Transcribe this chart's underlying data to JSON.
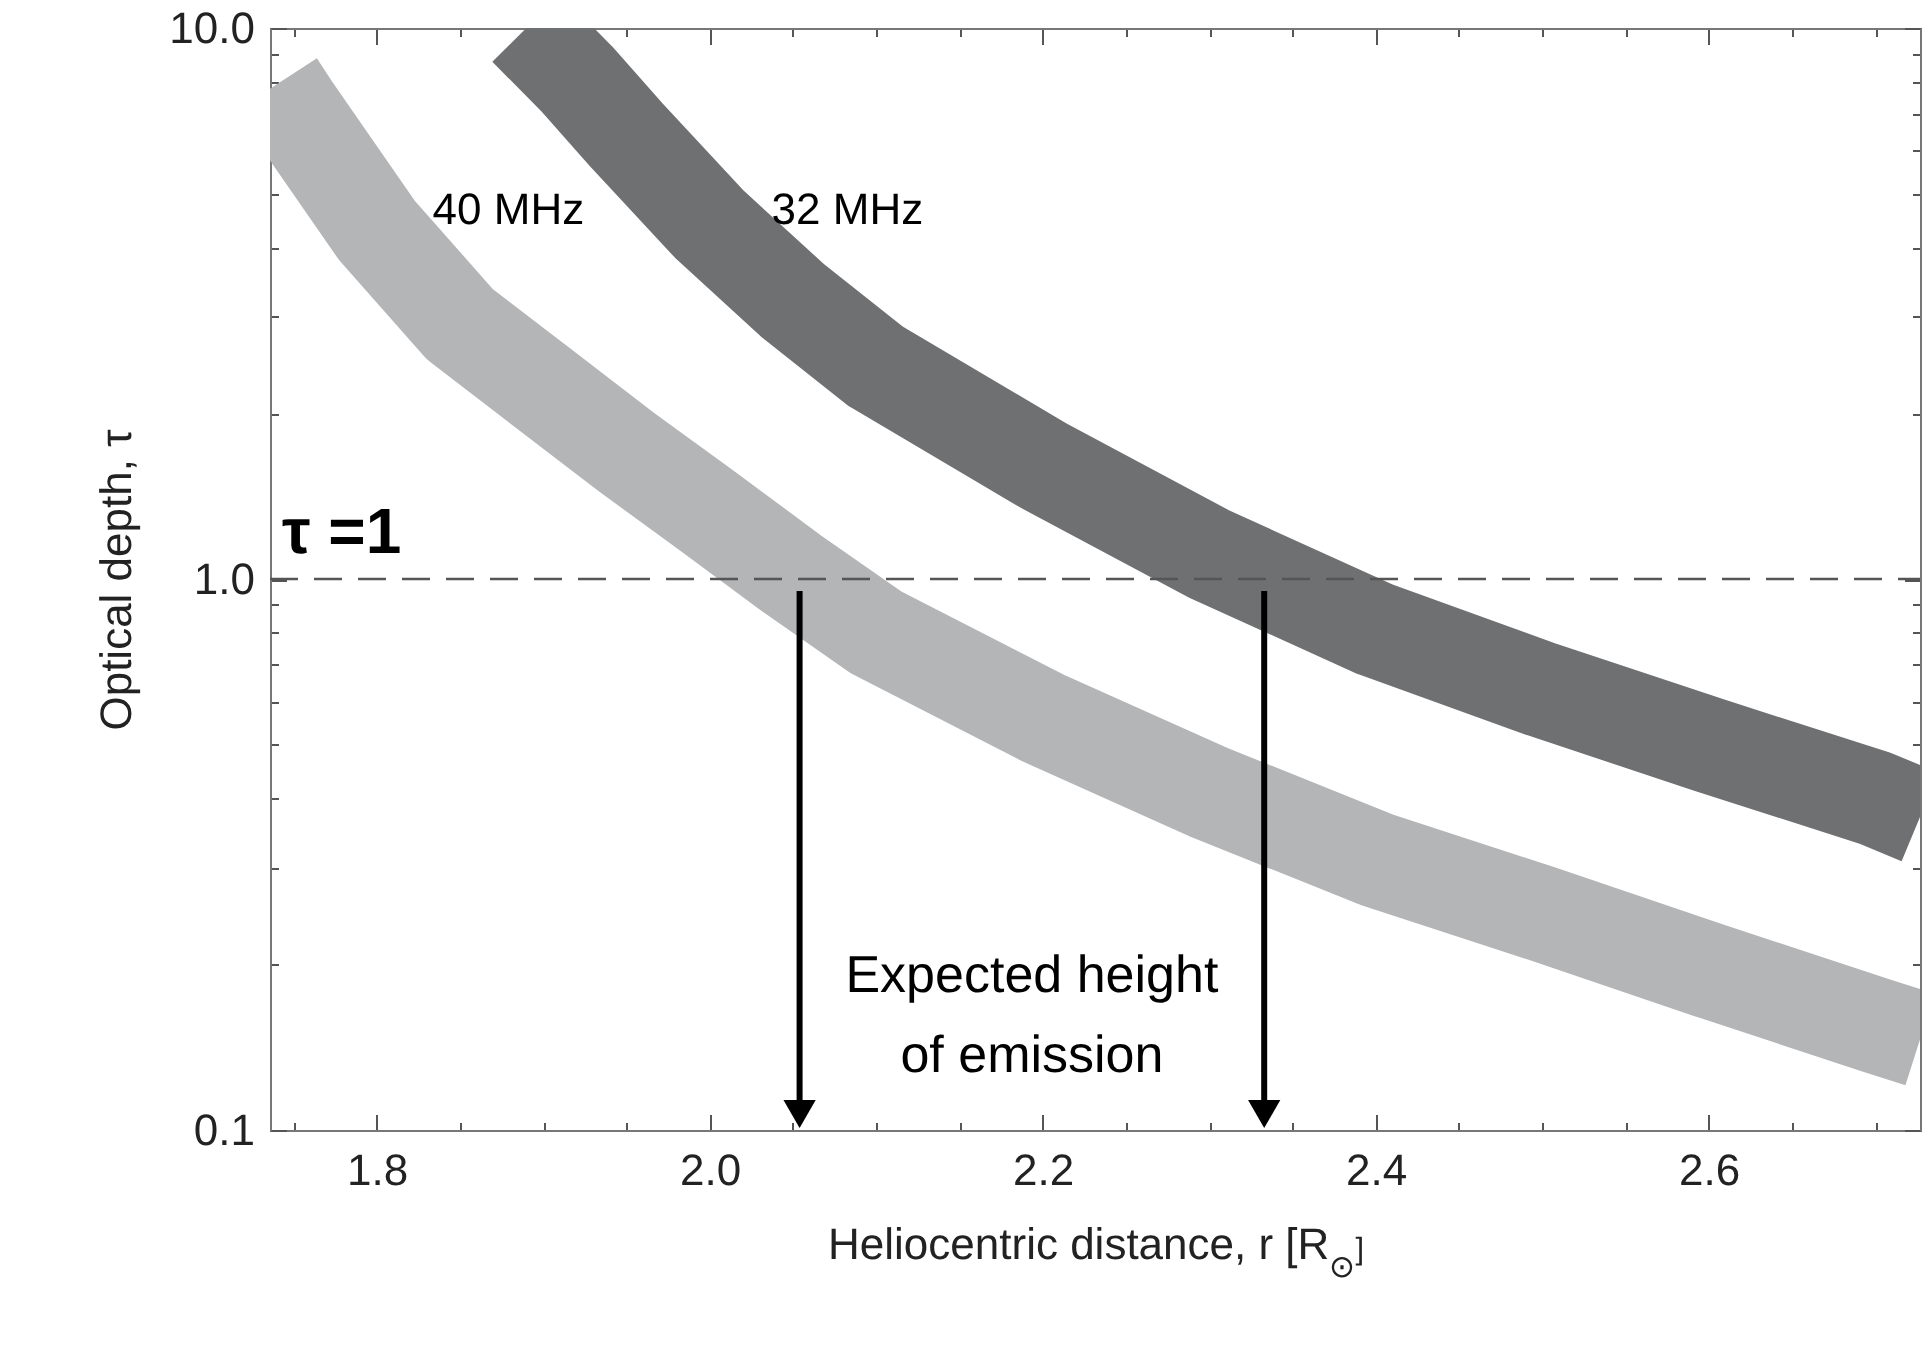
{
  "chart_data": {
    "type": "line",
    "xlabel": "Heliocentric distance, r [R$_{⊙}$]",
    "ylabel": "Optical depth, τ",
    "xlim": [
      1.736,
      2.727
    ],
    "ylim": [
      0.1,
      10
    ],
    "log": "y",
    "legend": false,
    "grid": false,
    "xticks": [
      {
        "value": 1.75,
        "label": null
      },
      1.8,
      {
        "value": 1.85,
        "label": null
      },
      {
        "value": 1.9,
        "label": null
      },
      {
        "value": 1.95,
        "label": null
      },
      {
        "value": 2.0,
        "label": "2.0"
      },
      {
        "value": 2.05,
        "label": null
      },
      {
        "value": 2.1,
        "label": null
      },
      {
        "value": 2.15,
        "label": null
      },
      2.2,
      {
        "value": 2.25,
        "label": null
      },
      {
        "value": 2.3,
        "label": null
      },
      {
        "value": 2.35,
        "label": null
      },
      2.4,
      {
        "value": 2.45,
        "label": null
      },
      {
        "value": 2.5,
        "label": null
      },
      {
        "value": 2.55,
        "label": null
      },
      2.6,
      {
        "value": 2.65,
        "label": null
      },
      {
        "value": 2.7,
        "label": null
      }
    ],
    "yticks": [
      0.1,
      {
        "value": 0.2,
        "label": null
      },
      {
        "value": 0.3,
        "label": null
      },
      {
        "value": 0.4,
        "label": null
      },
      {
        "value": 0.5,
        "label": null
      },
      {
        "value": 0.6,
        "label": null
      },
      {
        "value": 0.7,
        "label": null
      },
      {
        "value": 0.8,
        "label": null
      },
      {
        "value": 0.9,
        "label": null
      },
      {
        "value": 1,
        "label": "1.0"
      },
      {
        "value": 2,
        "label": null
      },
      {
        "value": 3,
        "label": null
      },
      {
        "value": 4,
        "label": null
      },
      {
        "value": 5,
        "label": null
      },
      {
        "value": 6,
        "label": null
      },
      {
        "value": 7,
        "label": null
      },
      {
        "value": 8,
        "label": null
      },
      {
        "value": 9,
        "label": null
      },
      {
        "value": 10,
        "label": "10.0"
      }
    ],
    "series": [
      {
        "name": "40 MHz",
        "color": "#b4b5b7",
        "x": [
          1.74,
          1.75,
          1.8,
          1.85,
          1.9,
          1.95,
          2.0,
          2.05,
          2.1,
          2.2,
          2.3,
          2.4,
          2.5,
          2.6,
          2.7,
          2.727
        ],
        "values": [
          7.9,
          7.1,
          4.3,
          2.9,
          2.22,
          1.7,
          1.32,
          1.02,
          0.8,
          0.56,
          0.41,
          0.31,
          0.247,
          0.195,
          0.155,
          0.146
        ]
      },
      {
        "name": "32 MHz",
        "color": "#6f7072",
        "x": [
          1.89,
          1.92,
          1.95,
          2.0,
          2.05,
          2.1,
          2.2,
          2.3,
          2.4,
          2.5,
          2.6,
          2.7,
          2.727
        ],
        "values": [
          10,
          8.1,
          6.4,
          4.4,
          3.2,
          2.43,
          1.61,
          1.11,
          0.81,
          0.63,
          0.5,
          0.4,
          0.37
        ]
      }
    ],
    "ref_lines": [
      {
        "axis": "y",
        "value": 1,
        "label": "τ =1",
        "line_style": "dashed",
        "color": "#555555"
      }
    ],
    "annotations": [
      "Expected height\nof emission"
    ]
  }
}
